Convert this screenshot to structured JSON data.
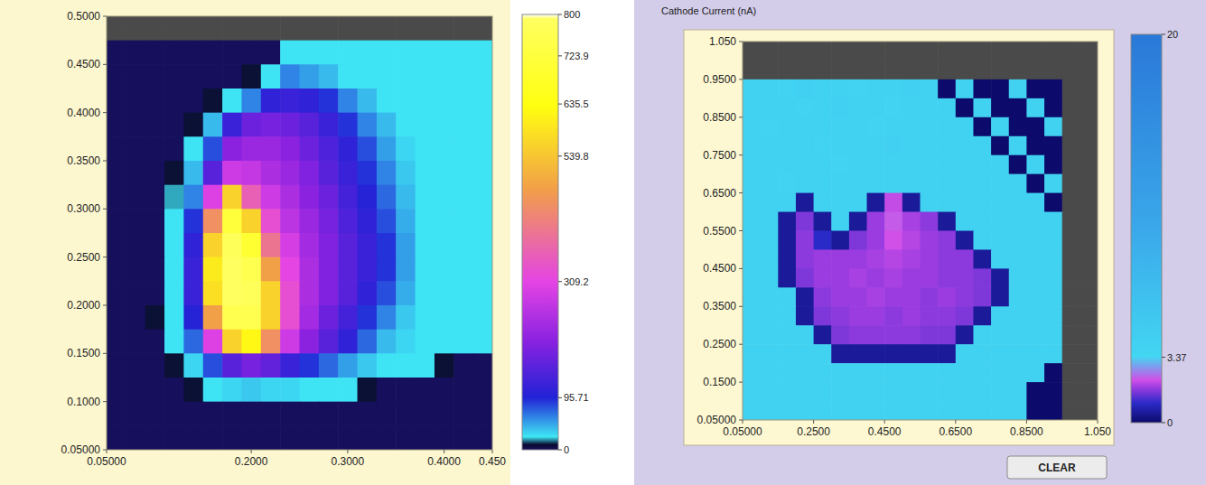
{
  "chart_data": [
    {
      "type": "heatmap",
      "xlim": [
        0.05,
        0.45
      ],
      "xticks": [
        {
          "value": 0.05,
          "label": "0.05000"
        },
        {
          "value": 0.2,
          "label": "0.2000"
        },
        {
          "value": 0.3,
          "label": "0.3000"
        },
        {
          "value": 0.4,
          "label": "0.4000"
        },
        {
          "value": 0.45,
          "label": "0.450"
        }
      ],
      "ylim": [
        0.05,
        0.5
      ],
      "yticks": [
        {
          "value": 0.05,
          "label": "0.05000"
        },
        {
          "value": 0.1,
          "label": "0.1000"
        },
        {
          "value": 0.15,
          "label": "0.1500"
        },
        {
          "value": 0.2,
          "label": "0.2000"
        },
        {
          "value": 0.25,
          "label": "0.2500"
        },
        {
          "value": 0.3,
          "label": "0.3000"
        },
        {
          "value": 0.35,
          "label": "0.3500"
        },
        {
          "value": 0.4,
          "label": "0.4000"
        },
        {
          "value": 0.45,
          "label": "0.4500"
        },
        {
          "value": 0.5,
          "label": "0.5000"
        }
      ],
      "cells": [
        [
          null,
          null,
          null,
          null,
          null,
          null,
          null,
          null,
          null,
          null,
          null,
          null,
          null,
          null,
          null,
          null,
          null,
          null,
          null,
          null
        ],
        [
          0,
          0,
          0,
          0,
          0,
          0,
          0,
          0,
          0,
          25,
          25,
          25,
          25,
          25,
          25,
          25,
          25,
          25,
          25,
          25
        ],
        [
          0,
          0,
          0,
          0,
          0,
          0,
          0,
          10,
          25,
          60,
          50,
          40,
          25,
          25,
          25,
          25,
          25,
          25,
          25,
          25
        ],
        [
          0,
          0,
          0,
          0,
          0,
          10,
          25,
          60,
          110,
          120,
          110,
          90,
          60,
          40,
          25,
          25,
          25,
          25,
          25,
          25
        ],
        [
          0,
          0,
          0,
          0,
          10,
          40,
          120,
          170,
          180,
          170,
          150,
          120,
          90,
          60,
          40,
          25,
          25,
          25,
          25,
          25
        ],
        [
          0,
          0,
          0,
          0,
          25,
          80,
          200,
          220,
          220,
          200,
          170,
          140,
          110,
          80,
          50,
          30,
          25,
          25,
          25,
          25
        ],
        [
          0,
          0,
          0,
          10,
          40,
          150,
          280,
          270,
          240,
          220,
          190,
          150,
          120,
          90,
          60,
          35,
          25,
          25,
          25,
          25
        ],
        [
          0,
          0,
          0,
          20,
          60,
          300,
          560,
          360,
          280,
          240,
          200,
          170,
          130,
          100,
          70,
          40,
          25,
          25,
          25,
          25
        ],
        [
          0,
          0,
          0,
          25,
          90,
          450,
          720,
          560,
          330,
          260,
          220,
          180,
          140,
          110,
          80,
          45,
          25,
          25,
          25,
          25
        ],
        [
          0,
          0,
          0,
          25,
          110,
          560,
          780,
          700,
          400,
          290,
          230,
          190,
          150,
          120,
          90,
          50,
          25,
          25,
          25,
          25
        ],
        [
          0,
          0,
          0,
          25,
          120,
          600,
          790,
          760,
          480,
          310,
          240,
          190,
          150,
          120,
          90,
          50,
          25,
          25,
          25,
          25
        ],
        [
          0,
          0,
          0,
          25,
          120,
          580,
          790,
          780,
          560,
          330,
          240,
          190,
          150,
          110,
          80,
          45,
          25,
          25,
          25,
          25
        ],
        [
          0,
          0,
          10,
          25,
          100,
          480,
          760,
          760,
          560,
          330,
          230,
          170,
          130,
          90,
          60,
          35,
          25,
          25,
          25,
          25
        ],
        [
          0,
          0,
          0,
          25,
          70,
          300,
          560,
          620,
          450,
          280,
          200,
          150,
          110,
          70,
          40,
          30,
          25,
          25,
          25,
          25
        ],
        [
          0,
          0,
          0,
          10,
          30,
          80,
          150,
          180,
          160,
          120,
          90,
          70,
          50,
          35,
          25,
          25,
          25,
          10,
          0,
          0
        ],
        [
          0,
          0,
          0,
          0,
          10,
          25,
          30,
          35,
          30,
          30,
          25,
          25,
          25,
          10,
          0,
          0,
          0,
          0,
          0,
          0
        ],
        [
          0,
          0,
          0,
          0,
          0,
          0,
          0,
          0,
          0,
          0,
          0,
          0,
          0,
          0,
          0,
          0,
          0,
          0,
          0,
          0
        ],
        [
          0,
          0,
          0,
          0,
          0,
          0,
          0,
          0,
          0,
          0,
          0,
          0,
          0,
          0,
          0,
          0,
          0,
          0,
          0,
          0
        ]
      ],
      "colorbar": {
        "range": [
          0,
          800
        ],
        "ticks": [
          0,
          95.71,
          309.2,
          539.8,
          635.5,
          723.9,
          800
        ]
      }
    },
    {
      "type": "heatmap",
      "title": "Cathode Current (nA)",
      "xlim": [
        0.05,
        1.05
      ],
      "xticks": [
        {
          "value": 0.05,
          "label": "0.05000"
        },
        {
          "value": 0.25,
          "label": "0.2500"
        },
        {
          "value": 0.45,
          "label": "0.4500"
        },
        {
          "value": 0.65,
          "label": "0.6500"
        },
        {
          "value": 0.85,
          "label": "0.8500"
        },
        {
          "value": 1.05,
          "label": "1.050"
        }
      ],
      "ylim": [
        0.05,
        1.05
      ],
      "yticks": [
        {
          "value": 0.05,
          "label": "0.05000"
        },
        {
          "value": 0.15,
          "label": "0.1500"
        },
        {
          "value": 0.25,
          "label": "0.2500"
        },
        {
          "value": 0.35,
          "label": "0.3500"
        },
        {
          "value": 0.45,
          "label": "0.4500"
        },
        {
          "value": 0.55,
          "label": "0.5500"
        },
        {
          "value": 0.65,
          "label": "0.6500"
        },
        {
          "value": 0.75,
          "label": "0.7500"
        },
        {
          "value": 0.85,
          "label": "0.8500"
        },
        {
          "value": 0.95,
          "label": "0.9500"
        },
        {
          "value": 1.05,
          "label": "1.050"
        }
      ],
      "cells": [
        [
          null,
          null,
          null,
          null,
          null,
          null,
          null,
          null,
          null,
          null,
          null,
          null,
          null,
          null,
          null,
          null,
          null,
          null,
          null,
          null
        ],
        [
          null,
          null,
          null,
          null,
          null,
          null,
          null,
          null,
          null,
          null,
          null,
          null,
          null,
          null,
          null,
          null,
          null,
          null,
          null,
          null
        ],
        [
          4,
          4,
          3.8,
          4.2,
          4,
          4,
          3.9,
          4.1,
          4,
          4.2,
          4,
          0,
          4,
          0,
          0,
          4,
          0,
          0,
          null,
          null
        ],
        [
          4,
          4.1,
          4,
          3.9,
          4,
          4.2,
          4,
          4,
          3.8,
          4,
          4.1,
          4,
          0,
          4,
          0,
          0,
          4,
          0,
          null,
          null
        ],
        [
          4,
          3.9,
          4.1,
          4,
          4,
          4,
          4.1,
          3.9,
          4,
          4,
          4,
          4,
          4,
          0,
          4,
          0,
          0,
          4,
          null,
          null
        ],
        [
          4,
          4,
          4,
          4.1,
          3.9,
          4,
          4,
          4,
          4.2,
          4,
          4,
          4,
          4,
          4,
          0,
          4,
          0,
          0,
          null,
          null
        ],
        [
          4,
          4.1,
          4,
          4,
          4,
          3.9,
          4,
          4,
          4,
          4.1,
          4,
          4,
          4,
          4,
          4,
          0,
          4,
          0,
          null,
          null
        ],
        [
          4,
          4,
          3.9,
          4,
          4,
          4,
          4.1,
          4,
          4,
          4,
          4,
          4,
          4,
          4,
          4,
          4,
          0,
          4,
          null,
          null
        ],
        [
          4,
          4,
          4,
          0.5,
          4,
          4,
          4,
          0.5,
          2.1,
          0.5,
          4,
          4,
          4,
          4,
          4,
          4,
          4,
          0,
          null,
          null
        ],
        [
          4,
          4,
          0.5,
          1.6,
          0.5,
          4,
          0.5,
          1.8,
          2.3,
          1.9,
          1.7,
          0.5,
          4,
          4,
          4,
          4,
          4,
          4,
          null,
          null
        ],
        [
          4,
          4,
          0.5,
          1.7,
          1.0,
          0.5,
          1.6,
          1.8,
          2.2,
          2.0,
          1.8,
          1.7,
          0.5,
          4,
          4,
          4,
          4,
          4,
          null,
          null
        ],
        [
          4,
          4,
          0.5,
          1.7,
          1.8,
          1.8,
          1.8,
          1.9,
          2.0,
          1.9,
          1.8,
          1.7,
          1.7,
          0.5,
          4,
          4,
          4,
          4,
          null,
          null
        ],
        [
          4,
          4,
          0.5,
          1.6,
          1.8,
          1.8,
          1.9,
          1.8,
          1.9,
          1.8,
          1.8,
          1.7,
          1.7,
          1.6,
          0.5,
          4,
          4,
          4,
          null,
          null
        ],
        [
          4,
          4,
          4,
          0.5,
          1.7,
          1.8,
          1.8,
          1.9,
          1.8,
          1.8,
          1.7,
          1.8,
          1.7,
          1.6,
          0.5,
          4,
          4,
          4,
          null,
          null
        ],
        [
          4,
          4,
          4,
          0.5,
          1.6,
          1.7,
          1.8,
          1.8,
          1.7,
          1.8,
          1.7,
          1.7,
          1.6,
          0.5,
          4,
          4,
          4,
          4,
          null,
          null
        ],
        [
          4,
          4,
          4,
          4,
          0.5,
          1.6,
          1.7,
          1.7,
          1.7,
          1.7,
          1.6,
          1.6,
          0.5,
          4,
          4,
          4,
          4,
          4,
          null,
          null
        ],
        [
          4,
          4,
          4,
          4,
          4,
          0.5,
          0.5,
          0.5,
          0.5,
          0.5,
          0.5,
          0.5,
          4,
          4,
          4,
          4,
          4,
          4,
          null,
          null
        ],
        [
          4,
          4,
          4,
          4,
          4,
          4,
          4,
          4,
          4,
          4,
          4,
          4,
          4,
          4,
          4,
          4,
          4,
          0,
          null,
          null
        ],
        [
          4,
          4,
          4,
          4,
          4,
          4,
          4,
          4,
          4,
          4,
          4,
          4,
          4,
          4,
          4,
          4,
          0,
          0,
          null,
          null
        ],
        [
          4,
          4,
          4,
          4,
          4,
          4,
          4,
          4,
          4,
          4,
          4,
          4,
          4,
          4,
          4,
          4,
          0,
          0,
          null,
          null
        ]
      ],
      "colorbar": {
        "range": [
          0,
          20
        ],
        "ticks": [
          0,
          3.37,
          20
        ]
      }
    }
  ],
  "button": {
    "label": "CLEAR"
  }
}
